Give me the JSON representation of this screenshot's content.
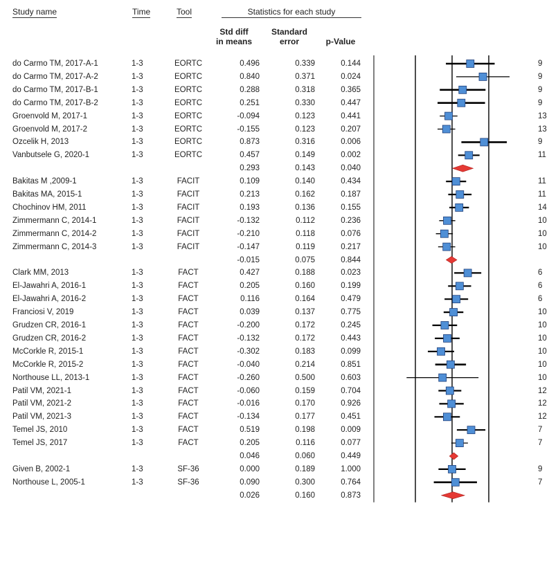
{
  "headers": {
    "study": "Study name",
    "time": "Time",
    "tool": "Tool",
    "stats": "Statistics for each study",
    "smd_line1": "Std diff",
    "smd_line2": "in means",
    "se_line1": "Standard",
    "se_line2": "error",
    "p": "p-Value"
  },
  "colors": {
    "study_marker": "#4f8fd6",
    "summary_diamond": "#e53a35",
    "ci_line": "#000000"
  },
  "chart_data": {
    "type": "forest",
    "x_reference_lines": [
      -1.0,
      0.0,
      1.0
    ],
    "rows": [
      {
        "kind": "study",
        "name": "do Carmo TM, 2017-A-1",
        "time": "1-3",
        "tool": "EORTC",
        "smd": "0.496",
        "se": "0.339",
        "p": "0.144",
        "n": "9"
      },
      {
        "kind": "study",
        "name": "do Carmo TM, 2017-A-2",
        "time": "1-3",
        "tool": "EORTC",
        "smd": "0.840",
        "se": "0.371",
        "p": "0.024",
        "n": "9"
      },
      {
        "kind": "study",
        "name": "do Carmo TM, 2017-B-1",
        "time": "1-3",
        "tool": "EORTC",
        "smd": "0.288",
        "se": "0.318",
        "p": "0.365",
        "n": "9"
      },
      {
        "kind": "study",
        "name": "do Carmo TM, 2017-B-2",
        "time": "1-3",
        "tool": "EORTC",
        "smd": "0.251",
        "se": "0.330",
        "p": "0.447",
        "n": "9"
      },
      {
        "kind": "study",
        "name": "Groenvold M, 2017-1",
        "time": "1-3",
        "tool": "EORTC",
        "smd": "-0.094",
        "se": "0.123",
        "p": "0.441",
        "n": "13"
      },
      {
        "kind": "study",
        "name": "Groenvold M, 2017-2",
        "time": "1-3",
        "tool": "EORTC",
        "smd": "-0.155",
        "se": "0.123",
        "p": "0.207",
        "n": "13"
      },
      {
        "kind": "study",
        "name": "Ozcelik H, 2013",
        "time": "1-3",
        "tool": "EORTC",
        "smd": "0.873",
        "se": "0.316",
        "p": "0.006",
        "n": "9"
      },
      {
        "kind": "study",
        "name": "Vanbutsele G, 2020-1",
        "time": "1-3",
        "tool": "EORTC",
        "smd": "0.457",
        "se": "0.149",
        "p": "0.002",
        "n": "11"
      },
      {
        "kind": "summary",
        "smd": "0.293",
        "se": "0.143",
        "p": "0.040"
      },
      {
        "kind": "study",
        "name": "Bakitas M ,2009-1",
        "time": "1-3",
        "tool": "FACIT",
        "smd": "0.109",
        "se": "0.140",
        "p": "0.434",
        "n": "11"
      },
      {
        "kind": "study",
        "name": "Bakitas MA, 2015-1",
        "time": "1-3",
        "tool": "FACIT",
        "smd": "0.213",
        "se": "0.162",
        "p": "0.187",
        "n": "11"
      },
      {
        "kind": "study",
        "name": "Chochinov HM, 2011",
        "time": "1-3",
        "tool": "FACIT",
        "smd": "0.193",
        "se": "0.136",
        "p": "0.155",
        "n": "14"
      },
      {
        "kind": "study",
        "name": "Zimmermann C, 2014-1",
        "time": "1-3",
        "tool": "FACIT",
        "smd": "-0.132",
        "se": "0.112",
        "p": "0.236",
        "n": "10"
      },
      {
        "kind": "study",
        "name": "Zimmermann C, 2014-2",
        "time": "1-3",
        "tool": "FACIT",
        "smd": "-0.210",
        "se": "0.118",
        "p": "0.076",
        "n": "10"
      },
      {
        "kind": "study",
        "name": "Zimmermann C, 2014-3",
        "time": "1-3",
        "tool": "FACIT",
        "smd": "-0.147",
        "se": "0.119",
        "p": "0.217",
        "n": "10"
      },
      {
        "kind": "summary",
        "smd": "-0.015",
        "se": "0.075",
        "p": "0.844"
      },
      {
        "kind": "study",
        "name": "Clark MM, 2013",
        "time": "1-3",
        "tool": "FACT",
        "smd": "0.427",
        "se": "0.188",
        "p": "0.023",
        "n": "6"
      },
      {
        "kind": "study",
        "name": "El-Jawahri A, 2016-1",
        "time": "1-3",
        "tool": "FACT",
        "smd": "0.205",
        "se": "0.160",
        "p": "0.199",
        "n": "6"
      },
      {
        "kind": "study",
        "name": "El-Jawahri A, 2016-2",
        "time": "1-3",
        "tool": "FACT",
        "smd": "0.116",
        "se": "0.164",
        "p": "0.479",
        "n": "6"
      },
      {
        "kind": "study",
        "name": "Franciosi V, 2019",
        "time": "1-3",
        "tool": "FACT",
        "smd": "0.039",
        "se": "0.137",
        "p": "0.775",
        "n": "10"
      },
      {
        "kind": "study",
        "name": "Grudzen CR, 2016-1",
        "time": "1-3",
        "tool": "FACT",
        "smd": "-0.200",
        "se": "0.172",
        "p": "0.245",
        "n": "10"
      },
      {
        "kind": "study",
        "name": "Grudzen CR, 2016-2",
        "time": "1-3",
        "tool": "FACT",
        "smd": "-0.132",
        "se": "0.172",
        "p": "0.443",
        "n": "10"
      },
      {
        "kind": "study",
        "name": "McCorkle R, 2015-1",
        "time": "1-3",
        "tool": "FACT",
        "smd": "-0.302",
        "se": "0.183",
        "p": "0.099",
        "n": "10"
      },
      {
        "kind": "study",
        "name": "McCorkle R, 2015-2",
        "time": "1-3",
        "tool": "FACT",
        "smd": "-0.040",
        "se": "0.214",
        "p": "0.851",
        "n": "10"
      },
      {
        "kind": "study",
        "name": "Northouse LL, 2013-1",
        "time": "1-3",
        "tool": "FACT",
        "smd": "-0.260",
        "se": "0.500",
        "p": "0.603",
        "n": "10"
      },
      {
        "kind": "study",
        "name": "Patil VM, 2021-1",
        "time": "1-3",
        "tool": "FACT",
        "smd": "-0.060",
        "se": "0.159",
        "p": "0.704",
        "n": "12"
      },
      {
        "kind": "study",
        "name": "Patil VM, 2021-2",
        "time": "1-3",
        "tool": "FACT",
        "smd": "-0.016",
        "se": "0.170",
        "p": "0.926",
        "n": "12"
      },
      {
        "kind": "study",
        "name": "Patil VM, 2021-3",
        "time": "1-3",
        "tool": "FACT",
        "smd": "-0.134",
        "se": "0.177",
        "p": "0.451",
        "n": "12"
      },
      {
        "kind": "study",
        "name": "Temel JS, 2010",
        "time": "1-3",
        "tool": "FACT",
        "smd": "0.519",
        "se": "0.198",
        "p": "0.009",
        "n": "7"
      },
      {
        "kind": "study",
        "name": "Temel JS, 2017",
        "time": "1-3",
        "tool": "FACT",
        "smd": "0.205",
        "se": "0.116",
        "p": "0.077",
        "n": "7"
      },
      {
        "kind": "summary",
        "smd": "0.046",
        "se": "0.060",
        "p": "0.449"
      },
      {
        "kind": "study",
        "name": "Given B, 2002-1",
        "time": "1-3",
        "tool": "SF-36",
        "smd": "0.000",
        "se": "0.189",
        "p": "1.000",
        "n": "9"
      },
      {
        "kind": "study",
        "name": "Northouse L, 2005-1",
        "time": "1-3",
        "tool": "SF-36",
        "smd": "0.090",
        "se": "0.300",
        "p": "0.764",
        "n": "7"
      },
      {
        "kind": "summary",
        "smd": "0.026",
        "se": "0.160",
        "p": "0.873"
      }
    ]
  }
}
